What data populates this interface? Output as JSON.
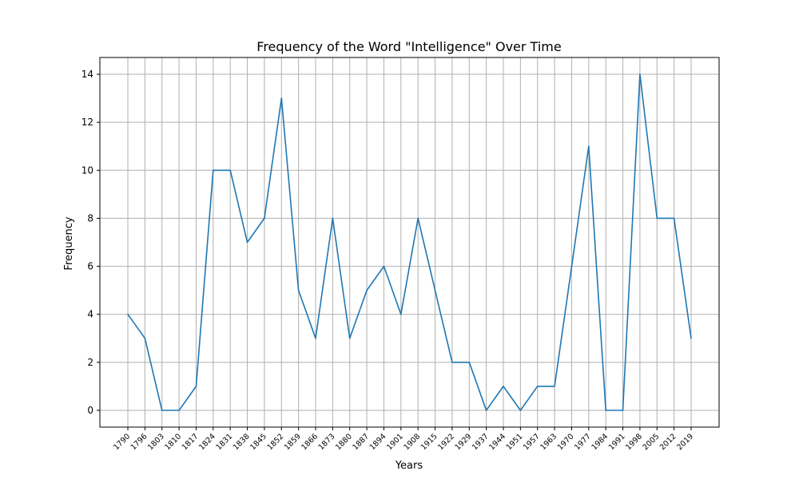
{
  "chart_data": {
    "type": "line",
    "title": "Frequency of the Word \"Intelligence\" Over Time",
    "xlabel": "Years",
    "ylabel": "Frequency",
    "ylim": [
      -0.7,
      14.7
    ],
    "y_ticks": [
      0,
      2,
      4,
      6,
      8,
      10,
      12,
      14
    ],
    "grid": true,
    "line_color": "#1f77b4",
    "categories": [
      "1790",
      "1796",
      "1803",
      "1810",
      "1817",
      "1824",
      "1831",
      "1838",
      "1845",
      "1852",
      "1859",
      "1866",
      "1873",
      "1880",
      "1887",
      "1894",
      "1901",
      "1908",
      "1915",
      "1922",
      "1929",
      "1937",
      "1944",
      "1951",
      "1957",
      "1963",
      "1970",
      "1977",
      "1984",
      "1991",
      "1998",
      "2005",
      "2012",
      "2019"
    ],
    "series": [
      {
        "values": [
          4,
          3,
          0,
          0,
          1,
          10,
          10,
          7,
          8,
          13,
          5,
          3,
          8,
          3,
          5,
          6,
          4,
          8,
          5,
          2,
          2,
          0,
          1,
          0,
          1,
          1,
          6,
          11,
          0,
          0,
          14,
          8,
          8,
          3
        ]
      }
    ]
  }
}
